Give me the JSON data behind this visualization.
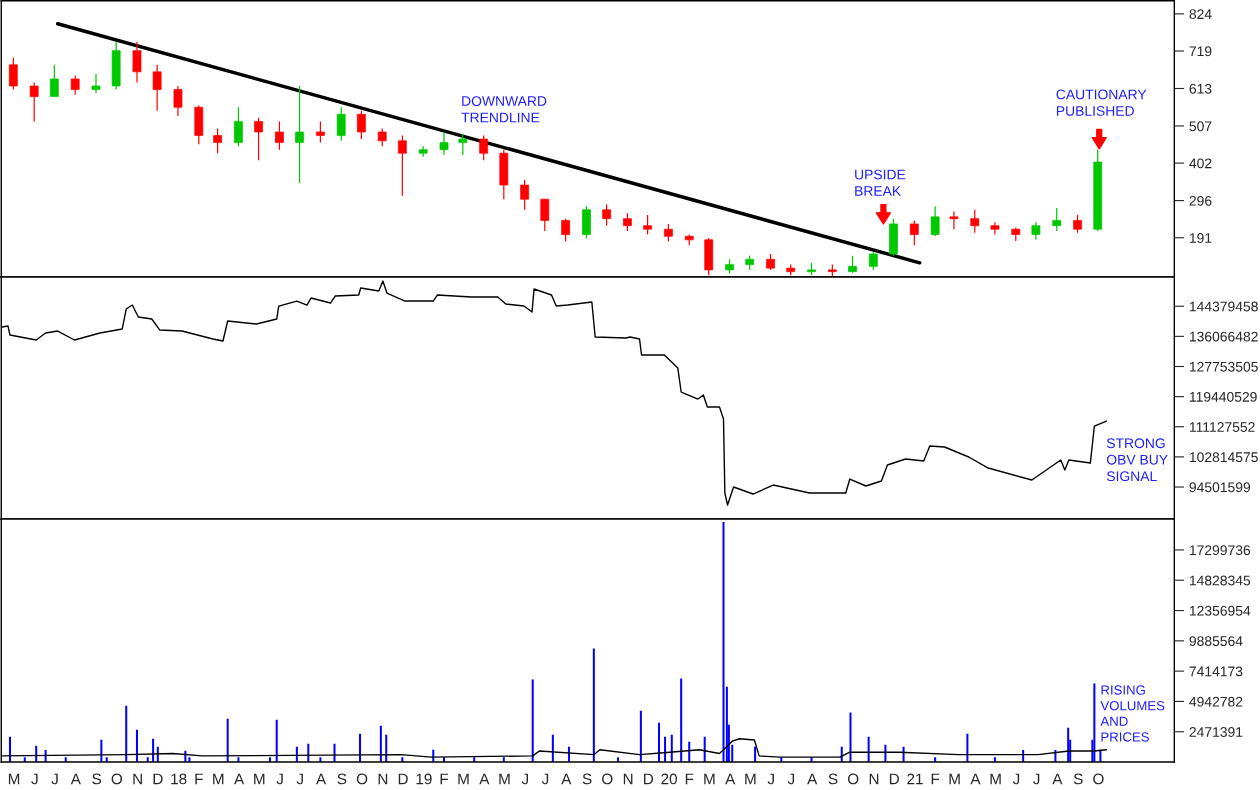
{
  "chart_data": [
    {
      "type": "candlestick",
      "tick_labels": "y",
      "xlim": [
        "2017-04-27",
        "2022-02-06"
      ],
      "ylim": [
        80,
        861
      ],
      "yticks": [
        191,
        296,
        402,
        507,
        613,
        719,
        824
      ],
      "x": [
        "2017-05-15",
        "2017-06-15",
        "2017-07-15",
        "2017-08-15",
        "2017-09-15",
        "2017-10-15",
        "2017-11-15",
        "2017-12-15",
        "2018-01-15",
        "2018-02-15",
        "2018-03-15",
        "2018-04-15",
        "2018-05-15",
        "2018-06-15",
        "2018-07-15",
        "2018-08-15",
        "2018-09-15",
        "2018-10-15",
        "2018-11-15",
        "2018-12-15",
        "2019-01-15",
        "2019-02-15",
        "2019-03-15",
        "2019-04-15",
        "2019-05-15",
        "2019-06-15",
        "2019-07-15",
        "2019-08-15",
        "2019-09-15",
        "2019-10-15",
        "2019-11-15",
        "2019-12-15",
        "2020-01-15",
        "2020-02-15",
        "2020-03-15",
        "2020-04-15",
        "2020-05-15",
        "2020-06-15",
        "2020-07-15",
        "2020-08-15",
        "2020-09-15",
        "2020-10-15",
        "2020-11-15",
        "2020-12-15",
        "2021-01-15",
        "2021-02-15",
        "2021-03-15",
        "2021-04-15",
        "2021-05-15",
        "2021-06-15",
        "2021-07-15",
        "2021-08-15",
        "2021-09-15",
        "2021-10-15"
      ],
      "ohlc": [
        [
          680,
          700,
          610,
          620
        ],
        [
          620,
          630,
          520,
          590
        ],
        [
          590,
          680,
          590,
          640
        ],
        [
          640,
          650,
          595,
          610
        ],
        [
          610,
          655,
          600,
          620
        ],
        [
          620,
          745,
          610,
          720
        ],
        [
          720,
          745,
          630,
          660
        ],
        [
          660,
          680,
          550,
          610
        ],
        [
          610,
          620,
          535,
          560
        ],
        [
          560,
          565,
          455,
          480
        ],
        [
          480,
          500,
          430,
          460
        ],
        [
          460,
          560,
          450,
          520
        ],
        [
          520,
          530,
          410,
          490
        ],
        [
          490,
          520,
          440,
          460
        ],
        [
          460,
          620,
          345,
          490
        ],
        [
          490,
          520,
          460,
          480
        ],
        [
          480,
          560,
          465,
          540
        ],
        [
          540,
          550,
          470,
          490
        ],
        [
          490,
          500,
          450,
          465
        ],
        [
          465,
          480,
          310,
          430
        ],
        [
          430,
          450,
          420,
          440
        ],
        [
          440,
          490,
          425,
          460
        ],
        [
          460,
          485,
          425,
          470
        ],
        [
          470,
          480,
          410,
          430
        ],
        [
          430,
          440,
          300,
          340
        ],
        [
          340,
          355,
          270,
          300
        ],
        [
          300,
          300,
          210,
          240
        ],
        [
          240,
          245,
          180,
          200
        ],
        [
          200,
          280,
          190,
          270
        ],
        [
          270,
          285,
          225,
          245
        ],
        [
          245,
          260,
          210,
          225
        ],
        [
          225,
          255,
          200,
          215
        ],
        [
          215,
          230,
          180,
          195
        ],
        [
          195,
          200,
          170,
          185
        ],
        [
          185,
          190,
          85,
          100
        ],
        [
          100,
          130,
          90,
          115
        ],
        [
          115,
          140,
          100,
          130
        ],
        [
          130,
          145,
          100,
          105
        ],
        [
          105,
          115,
          85,
          95
        ],
        [
          95,
          120,
          85,
          100
        ],
        [
          100,
          115,
          82,
          95
        ],
        [
          95,
          140,
          92,
          110
        ],
        [
          110,
          150,
          100,
          145
        ],
        [
          145,
          245,
          140,
          230
        ],
        [
          230,
          240,
          170,
          200
        ],
        [
          200,
          280,
          195,
          250
        ],
        [
          250,
          265,
          215,
          245
        ],
        [
          245,
          270,
          205,
          225
        ],
        [
          225,
          235,
          200,
          215
        ],
        [
          215,
          220,
          182,
          200
        ],
        [
          200,
          235,
          185,
          225
        ],
        [
          225,
          275,
          210,
          240
        ],
        [
          240,
          255,
          205,
          215
        ],
        [
          215,
          440,
          210,
          405
        ]
      ],
      "colors": [
        "#ff0000",
        "#ff0000",
        "#00c800",
        "#ff0000",
        "#00c800",
        "#00c800",
        "#ff0000",
        "#ff0000",
        "#ff0000",
        "#ff0000",
        "#ff0000",
        "#00c800",
        "#ff0000",
        "#ff0000",
        "#00c800",
        "#ff0000",
        "#00c800",
        "#ff0000",
        "#ff0000",
        "#ff0000",
        "#00c800",
        "#00c800",
        "#00c800",
        "#ff0000",
        "#ff0000",
        "#ff0000",
        "#ff0000",
        "#ff0000",
        "#00c800",
        "#ff0000",
        "#ff0000",
        "#ff0000",
        "#ff0000",
        "#ff0000",
        "#ff0000",
        "#00c800",
        "#00c800",
        "#ff0000",
        "#ff0000",
        "#00c800",
        "#ff0000",
        "#00c800",
        "#00c800",
        "#00c800",
        "#ff0000",
        "#00c800",
        "#ff0000",
        "#ff0000",
        "#ff0000",
        "#ff0000",
        "#00c800",
        "#00c800",
        "#ff0000",
        "#00c800"
      ],
      "series": [
        {
          "type": "line",
          "x": [
            "2017-07-20",
            "2021-01-23"
          ],
          "values": [
            796,
            120
          ],
          "color": "#000000"
        }
      ],
      "annotations": [
        "DOWNWARD\nTRENDLINE",
        "UPSIDE\nBREAK",
        "CAUTIONARY\nPUBLISHED"
      ]
    },
    {
      "type": "line",
      "tick_labels": "y",
      "xlim": [
        "2017-04-27",
        "2022-02-06"
      ],
      "ylim": [
        85670000,
        152430000
      ],
      "yticks": [
        94501599,
        102814575,
        111127552,
        119440529,
        127753505,
        136066482,
        144379458
      ],
      "color": "#000000",
      "x": [
        "2017-04-28",
        "2017-05-07",
        "2017-05-10",
        "2017-06-18",
        "2017-07-02",
        "2017-07-20",
        "2017-08-14",
        "2017-09-21",
        "2017-10-24",
        "2017-10-30",
        "2017-11-08",
        "2017-11-17",
        "2017-12-07",
        "2017-12-19",
        "2018-01-21",
        "2018-03-08",
        "2018-03-23",
        "2018-03-30",
        "2018-05-12",
        "2018-06-11",
        "2018-06-14",
        "2018-07-11",
        "2018-07-26",
        "2018-08-01",
        "2018-08-30",
        "2018-09-06",
        "2018-10-11",
        "2018-10-14",
        "2018-11-10",
        "2018-11-16",
        "2018-11-22",
        "2018-12-19",
        "2019-01-30",
        "2019-02-05",
        "2019-03-28",
        "2019-05-06",
        "2019-05-18",
        "2019-06-14",
        "2019-06-26",
        "2019-06-29",
        "2019-07-25",
        "2019-08-01",
        "2019-08-18",
        "2019-09-23",
        "2019-09-28",
        "2019-11-13",
        "2019-11-19",
        "2019-12-03",
        "2019-12-06",
        "2020-01-09",
        "2020-01-29",
        "2020-02-03",
        "2020-02-28",
        "2020-03-07",
        "2020-03-13",
        "2020-03-31",
        "2020-04-06",
        "2020-04-08",
        "2020-04-12",
        "2020-04-21",
        "2020-05-20",
        "2020-06-19",
        "2020-08-12",
        "2020-10-05",
        "2020-10-11",
        "2020-11-04",
        "2020-11-27",
        "2020-12-06",
        "2021-01-02",
        "2021-01-29",
        "2021-02-07",
        "2021-03-01",
        "2021-04-06",
        "2021-05-05",
        "2021-07-09",
        "2021-08-21",
        "2021-08-27",
        "2021-09-02",
        "2021-10-04",
        "2021-10-10",
        "2021-10-28"
      ],
      "values": [
        138640000,
        138920000,
        136430000,
        135060000,
        136990000,
        137540000,
        135060000,
        136990000,
        138090000,
        143610000,
        144710000,
        141400000,
        140850000,
        137810000,
        137540000,
        135330000,
        134780000,
        140300000,
        139470000,
        140850000,
        144430000,
        145810000,
        144710000,
        146640000,
        145260000,
        147190000,
        147470000,
        149400000,
        148570000,
        151330000,
        148020000,
        145810000,
        145810000,
        147470000,
        146920000,
        146920000,
        144990000,
        144430000,
        142780000,
        149130000,
        147470000,
        144430000,
        144710000,
        145540000,
        135880000,
        135610000,
        135880000,
        135330000,
        130920000,
        130920000,
        127330000,
        120710000,
        118780000,
        119880000,
        116570000,
        116570000,
        113260000,
        92850000,
        89540000,
        94500000,
        92570000,
        95050000,
        92850000,
        92850000,
        96710000,
        94780000,
        96160000,
        100570000,
        102230000,
        101670000,
        105810000,
        105540000,
        102780000,
        99740000,
        96430000,
        101950000,
        99190000,
        101950000,
        101120000,
        111330000,
        112710000
      ],
      "annotations": [
        "STRONG\nOBV BUY\nSIGNAL"
      ]
    },
    {
      "type": "bar",
      "xlim": [
        "2017-04-27",
        "2022-02-06"
      ],
      "ylim": [
        0,
        19820000
      ],
      "yticks": [
        2471391,
        4942782,
        7414173,
        9885564,
        12356954,
        14828345,
        17299736
      ],
      "xticks": [
        {
          "value": "2017-05-16",
          "label": "M"
        },
        {
          "value": "2017-06-16",
          "label": "J"
        },
        {
          "value": "2017-07-16",
          "label": "J"
        },
        {
          "value": "2017-08-16",
          "label": "A"
        },
        {
          "value": "2017-09-16",
          "label": "S"
        },
        {
          "value": "2017-10-16",
          "label": "O"
        },
        {
          "value": "2017-11-16",
          "label": "N"
        },
        {
          "value": "2017-12-16",
          "label": "D"
        },
        {
          "value": "2018-01-16",
          "label": "18"
        },
        {
          "value": "2018-02-15",
          "label": "F"
        },
        {
          "value": "2018-03-16",
          "label": "M"
        },
        {
          "value": "2018-04-16",
          "label": "A"
        },
        {
          "value": "2018-05-16",
          "label": "M"
        },
        {
          "value": "2018-06-16",
          "label": "J"
        },
        {
          "value": "2018-07-16",
          "label": "J"
        },
        {
          "value": "2018-08-16",
          "label": "A"
        },
        {
          "value": "2018-09-16",
          "label": "S"
        },
        {
          "value": "2018-10-16",
          "label": "O"
        },
        {
          "value": "2018-11-16",
          "label": "N"
        },
        {
          "value": "2018-12-16",
          "label": "D"
        },
        {
          "value": "2019-01-16",
          "label": "19"
        },
        {
          "value": "2019-02-15",
          "label": "F"
        },
        {
          "value": "2019-03-16",
          "label": "M"
        },
        {
          "value": "2019-04-16",
          "label": "A"
        },
        {
          "value": "2019-05-16",
          "label": "M"
        },
        {
          "value": "2019-06-16",
          "label": "J"
        },
        {
          "value": "2019-07-16",
          "label": "J"
        },
        {
          "value": "2019-08-16",
          "label": "A"
        },
        {
          "value": "2019-09-16",
          "label": "S"
        },
        {
          "value": "2019-10-16",
          "label": "O"
        },
        {
          "value": "2019-11-16",
          "label": "N"
        },
        {
          "value": "2019-12-16",
          "label": "D"
        },
        {
          "value": "2020-01-16",
          "label": "20"
        },
        {
          "value": "2020-02-15",
          "label": "F"
        },
        {
          "value": "2020-03-16",
          "label": "M"
        },
        {
          "value": "2020-04-16",
          "label": "A"
        },
        {
          "value": "2020-05-16",
          "label": "M"
        },
        {
          "value": "2020-06-16",
          "label": "J"
        },
        {
          "value": "2020-07-16",
          "label": "J"
        },
        {
          "value": "2020-08-16",
          "label": "A"
        },
        {
          "value": "2020-09-16",
          "label": "S"
        },
        {
          "value": "2020-10-16",
          "label": "O"
        },
        {
          "value": "2020-11-16",
          "label": "N"
        },
        {
          "value": "2020-12-16",
          "label": "D"
        },
        {
          "value": "2021-01-16",
          "label": "21"
        },
        {
          "value": "2021-02-15",
          "label": "F"
        },
        {
          "value": "2021-03-16",
          "label": "M"
        },
        {
          "value": "2021-04-16",
          "label": "A"
        },
        {
          "value": "2021-05-16",
          "label": "M"
        },
        {
          "value": "2021-06-16",
          "label": "J"
        },
        {
          "value": "2021-07-16",
          "label": "J"
        },
        {
          "value": "2021-08-16",
          "label": "A"
        },
        {
          "value": "2021-09-16",
          "label": "S"
        },
        {
          "value": "2021-10-16",
          "label": "O"
        }
      ],
      "series": [
        {
          "type": "bar",
          "color": "#0000ff",
          "x": [
            "2017-05-10",
            "2017-06-01",
            "2017-06-18",
            "2017-07-02",
            "2017-08-01",
            "2017-09-23",
            "2017-10-01",
            "2017-10-30",
            "2017-11-15",
            "2017-12-01",
            "2017-12-09",
            "2017-12-16",
            "2018-01-26",
            "2018-02-01",
            "2018-03-30",
            "2018-04-15",
            "2018-06-01",
            "2018-06-11",
            "2018-07-11",
            "2018-07-28",
            "2018-08-15",
            "2018-09-05",
            "2018-10-13",
            "2018-11-13",
            "2018-11-21",
            "2018-12-15",
            "2019-01-30",
            "2019-02-15",
            "2019-04-01",
            "2019-05-15",
            "2019-06-27",
            "2019-07-27",
            "2019-08-20",
            "2019-09-26",
            "2019-11-01",
            "2019-12-05",
            "2020-01-01",
            "2020-01-10",
            "2020-01-20",
            "2020-02-03",
            "2020-02-15",
            "2020-03-09",
            "2020-04-06",
            "2020-04-11",
            "2020-04-14",
            "2020-04-19",
            "2020-05-23",
            "2020-07-01",
            "2020-08-15",
            "2020-09-29",
            "2020-10-12",
            "2020-11-08",
            "2020-12-03",
            "2020-12-30",
            "2021-02-15",
            "2021-04-04",
            "2021-05-15",
            "2021-06-26",
            "2021-08-13",
            "2021-09-01",
            "2021-09-04",
            "2021-10-07",
            "2021-10-10",
            "2021-10-19"
          ],
          "values": [
            2060000,
            400000,
            1330000,
            990000,
            400000,
            1820000,
            400000,
            4600000,
            2640000,
            400000,
            1900000,
            1240000,
            920000,
            400000,
            3540000,
            400000,
            400000,
            3450000,
            1240000,
            1490000,
            400000,
            1490000,
            2310000,
            2960000,
            2230000,
            400000,
            1000000,
            400000,
            400000,
            400000,
            6730000,
            2230000,
            1240000,
            9260000,
            400000,
            4190000,
            3210000,
            2060000,
            2230000,
            6810000,
            1650000,
            2060000,
            19570000,
            6150000,
            3040000,
            1410000,
            1240000,
            400000,
            400000,
            1240000,
            4030000,
            2060000,
            1410000,
            1240000,
            400000,
            2310000,
            400000,
            990000,
            990000,
            2800000,
            1820000,
            1820000,
            6400000,
            1000000
          ]
        },
        {
          "type": "line",
          "color": "#000000",
          "x": [
            "2017-04-28",
            "2017-10-30",
            "2018-01-07",
            "2018-02-20",
            "2018-12-13",
            "2019-01-27",
            "2019-06-27",
            "2019-07-07",
            "2019-09-26",
            "2019-10-05",
            "2019-12-03",
            "2020-01-17",
            "2020-03-01",
            "2020-03-31",
            "2020-04-19",
            "2020-04-30",
            "2020-05-22",
            "2020-05-29",
            "2020-06-28",
            "2020-09-26",
            "2020-10-11",
            "2020-12-24",
            "2021-03-22",
            "2021-07-18",
            "2021-09-02",
            "2021-10-10",
            "2021-10-28"
          ],
          "values": [
            500000,
            600000,
            700000,
            500000,
            600000,
            400000,
            500000,
            900000,
            600000,
            1000000,
            600000,
            800000,
            1000000,
            700000,
            1700000,
            1900000,
            1800000,
            500000,
            400000,
            400000,
            800000,
            800000,
            600000,
            600000,
            900000,
            900000,
            1000000
          ]
        }
      ],
      "annotations": [
        "RISING\nVOLUMES\nAND\nPRICES"
      ]
    }
  ]
}
